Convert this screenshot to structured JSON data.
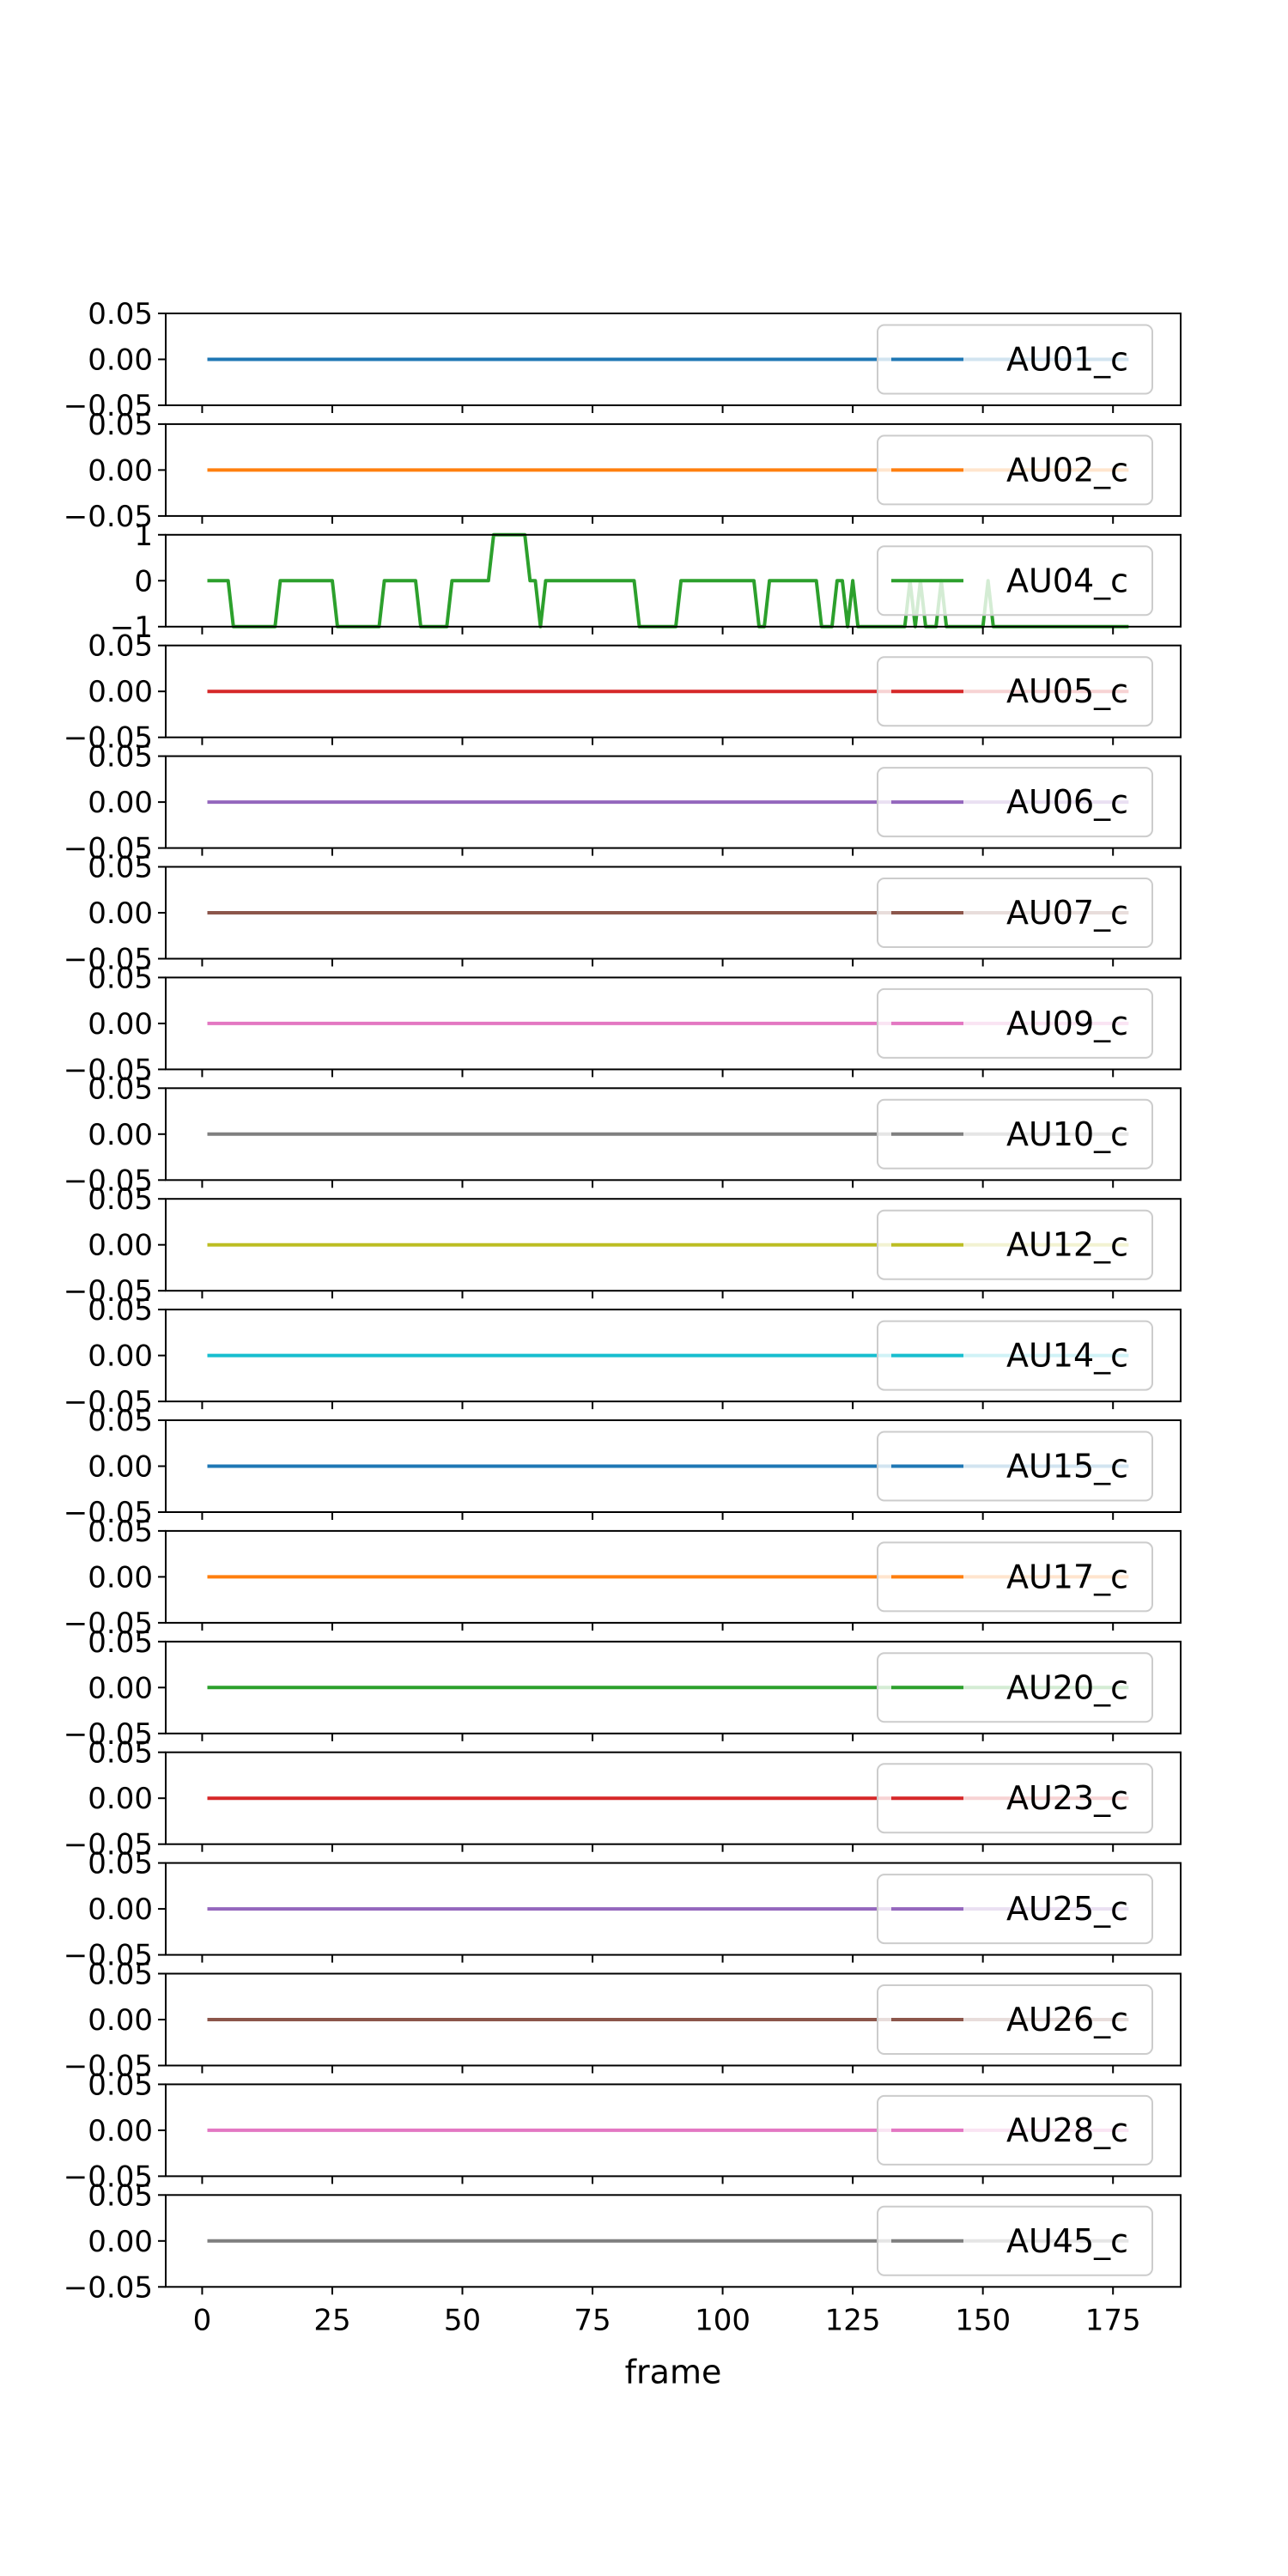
{
  "chart_data": {
    "type": "line",
    "xlabel": "frame",
    "xlim": [
      -7,
      188
    ],
    "x_ticks": [
      0,
      25,
      50,
      75,
      100,
      125,
      150,
      175
    ],
    "x_tick_labels": [
      "0",
      "25",
      "50",
      "75",
      "100",
      "125",
      "150",
      "175"
    ],
    "x_range": [
      1,
      178
    ],
    "legend_position": "right",
    "grid": false,
    "subplots": [
      {
        "name": "AU01_c",
        "color": "#1f77b4",
        "ylim": [
          -0.05,
          0.05
        ],
        "y_ticks": [
          0.05,
          0.0,
          -0.05
        ],
        "y_tick_labels": [
          "0.05",
          "0.00",
          "−0.05"
        ],
        "constant": 0
      },
      {
        "name": "AU02_c",
        "color": "#ff7f0e",
        "ylim": [
          -0.05,
          0.05
        ],
        "y_ticks": [
          0.05,
          0.0,
          -0.05
        ],
        "y_tick_labels": [
          "0.05",
          "0.00",
          "−0.05"
        ],
        "constant": 0
      },
      {
        "name": "AU04_c",
        "color": "#2ca02c",
        "ylim": [
          -1,
          1
        ],
        "y_ticks": [
          1,
          0,
          -1
        ],
        "y_tick_labels": [
          "1",
          "0",
          "−1"
        ],
        "points": [
          [
            1,
            0
          ],
          [
            5,
            0
          ],
          [
            6,
            -1
          ],
          [
            14,
            -1
          ],
          [
            15,
            0
          ],
          [
            25,
            0
          ],
          [
            26,
            -1
          ],
          [
            34,
            -1
          ],
          [
            35,
            0
          ],
          [
            41,
            0
          ],
          [
            42,
            -1
          ],
          [
            47,
            -1
          ],
          [
            48,
            0
          ],
          [
            55,
            0
          ],
          [
            56,
            1
          ],
          [
            62,
            1
          ],
          [
            63,
            0
          ],
          [
            64,
            0
          ],
          [
            65,
            -1
          ],
          [
            66,
            0
          ],
          [
            83,
            0
          ],
          [
            84,
            -1
          ],
          [
            91,
            -1
          ],
          [
            92,
            0
          ],
          [
            106,
            0
          ],
          [
            107,
            -1
          ],
          [
            108,
            -1
          ],
          [
            109,
            0
          ],
          [
            118,
            0
          ],
          [
            119,
            -1
          ],
          [
            121,
            -1
          ],
          [
            122,
            0
          ],
          [
            123,
            0
          ],
          [
            124,
            -1
          ],
          [
            125,
            0
          ],
          [
            126,
            -1
          ],
          [
            135,
            -1
          ],
          [
            136,
            0
          ],
          [
            137,
            -1
          ],
          [
            138,
            0
          ],
          [
            139,
            -1
          ],
          [
            141,
            -1
          ],
          [
            142,
            0
          ],
          [
            143,
            -1
          ],
          [
            150,
            -1
          ],
          [
            151,
            0
          ],
          [
            152,
            -1
          ],
          [
            178,
            -1
          ]
        ]
      },
      {
        "name": "AU05_c",
        "color": "#d62728",
        "ylim": [
          -0.05,
          0.05
        ],
        "y_ticks": [
          0.05,
          0.0,
          -0.05
        ],
        "y_tick_labels": [
          "0.05",
          "0.00",
          "−0.05"
        ],
        "constant": 0
      },
      {
        "name": "AU06_c",
        "color": "#9467bd",
        "ylim": [
          -0.05,
          0.05
        ],
        "y_ticks": [
          0.05,
          0.0,
          -0.05
        ],
        "y_tick_labels": [
          "0.05",
          "0.00",
          "−0.05"
        ],
        "constant": 0
      },
      {
        "name": "AU07_c",
        "color": "#8c564b",
        "ylim": [
          -0.05,
          0.05
        ],
        "y_ticks": [
          0.05,
          0.0,
          -0.05
        ],
        "y_tick_labels": [
          "0.05",
          "0.00",
          "−0.05"
        ],
        "constant": 0
      },
      {
        "name": "AU09_c",
        "color": "#e377c2",
        "ylim": [
          -0.05,
          0.05
        ],
        "y_ticks": [
          0.05,
          0.0,
          -0.05
        ],
        "y_tick_labels": [
          "0.05",
          "0.00",
          "−0.05"
        ],
        "constant": 0
      },
      {
        "name": "AU10_c",
        "color": "#7f7f7f",
        "ylim": [
          -0.05,
          0.05
        ],
        "y_ticks": [
          0.05,
          0.0,
          -0.05
        ],
        "y_tick_labels": [
          "0.05",
          "0.00",
          "−0.05"
        ],
        "constant": 0
      },
      {
        "name": "AU12_c",
        "color": "#bcbd22",
        "ylim": [
          -0.05,
          0.05
        ],
        "y_ticks": [
          0.05,
          0.0,
          -0.05
        ],
        "y_tick_labels": [
          "0.05",
          "0.00",
          "−0.05"
        ],
        "constant": 0
      },
      {
        "name": "AU14_c",
        "color": "#17becf",
        "ylim": [
          -0.05,
          0.05
        ],
        "y_ticks": [
          0.05,
          0.0,
          -0.05
        ],
        "y_tick_labels": [
          "0.05",
          "0.00",
          "−0.05"
        ],
        "constant": 0
      },
      {
        "name": "AU15_c",
        "color": "#1f77b4",
        "ylim": [
          -0.05,
          0.05
        ],
        "y_ticks": [
          0.05,
          0.0,
          -0.05
        ],
        "y_tick_labels": [
          "0.05",
          "0.00",
          "−0.05"
        ],
        "constant": 0
      },
      {
        "name": "AU17_c",
        "color": "#ff7f0e",
        "ylim": [
          -0.05,
          0.05
        ],
        "y_ticks": [
          0.05,
          0.0,
          -0.05
        ],
        "y_tick_labels": [
          "0.05",
          "0.00",
          "−0.05"
        ],
        "constant": 0
      },
      {
        "name": "AU20_c",
        "color": "#2ca02c",
        "ylim": [
          -0.05,
          0.05
        ],
        "y_ticks": [
          0.05,
          0.0,
          -0.05
        ],
        "y_tick_labels": [
          "0.05",
          "0.00",
          "−0.05"
        ],
        "constant": 0
      },
      {
        "name": "AU23_c",
        "color": "#d62728",
        "ylim": [
          -0.05,
          0.05
        ],
        "y_ticks": [
          0.05,
          0.0,
          -0.05
        ],
        "y_tick_labels": [
          "0.05",
          "0.00",
          "−0.05"
        ],
        "constant": 0
      },
      {
        "name": "AU25_c",
        "color": "#9467bd",
        "ylim": [
          -0.05,
          0.05
        ],
        "y_ticks": [
          0.05,
          0.0,
          -0.05
        ],
        "y_tick_labels": [
          "0.05",
          "0.00",
          "−0.05"
        ],
        "constant": 0
      },
      {
        "name": "AU26_c",
        "color": "#8c564b",
        "ylim": [
          -0.05,
          0.05
        ],
        "y_ticks": [
          0.05,
          0.0,
          -0.05
        ],
        "y_tick_labels": [
          "0.05",
          "0.00",
          "−0.05"
        ],
        "constant": 0
      },
      {
        "name": "AU28_c",
        "color": "#e377c2",
        "ylim": [
          -0.05,
          0.05
        ],
        "y_ticks": [
          0.05,
          0.0,
          -0.05
        ],
        "y_tick_labels": [
          "0.05",
          "0.00",
          "−0.05"
        ],
        "constant": 0
      },
      {
        "name": "AU45_c",
        "color": "#7f7f7f",
        "ylim": [
          -0.05,
          0.05
        ],
        "y_ticks": [
          0.05,
          0.0,
          -0.05
        ],
        "y_tick_labels": [
          "0.05",
          "0.00",
          "−0.05"
        ],
        "constant": 0
      }
    ]
  }
}
